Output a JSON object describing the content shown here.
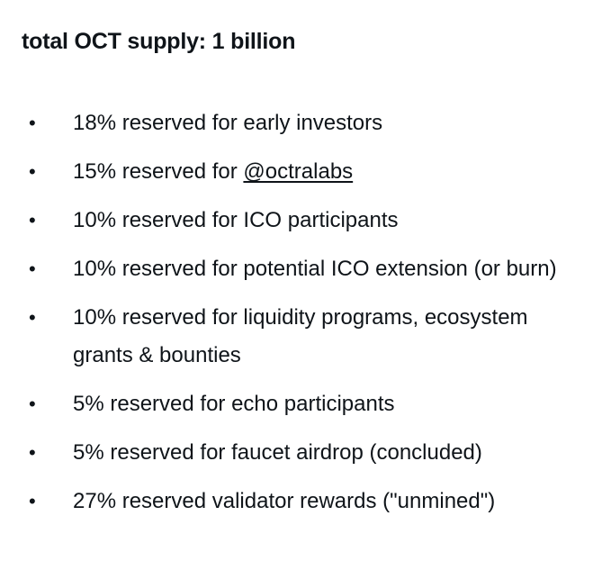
{
  "heading": "total OCT supply: 1 billion",
  "bullet_glyph": "•",
  "items": [
    {
      "text": "18% reserved for early investors"
    },
    {
      "text_before": "15% reserved for ",
      "mention": "@octralabs"
    },
    {
      "text": "10% reserved for ICO participants"
    },
    {
      "text": "10% reserved for potential ICO extension (or burn)"
    },
    {
      "text": "10% reserved for liquidity programs, ecosystem grants & bounties"
    },
    {
      "text": "5% reserved for echo participants"
    },
    {
      "text": "5% reserved for faucet airdrop (concluded)"
    },
    {
      "text": "27% reserved validator rewards (\"unmined\")"
    }
  ]
}
